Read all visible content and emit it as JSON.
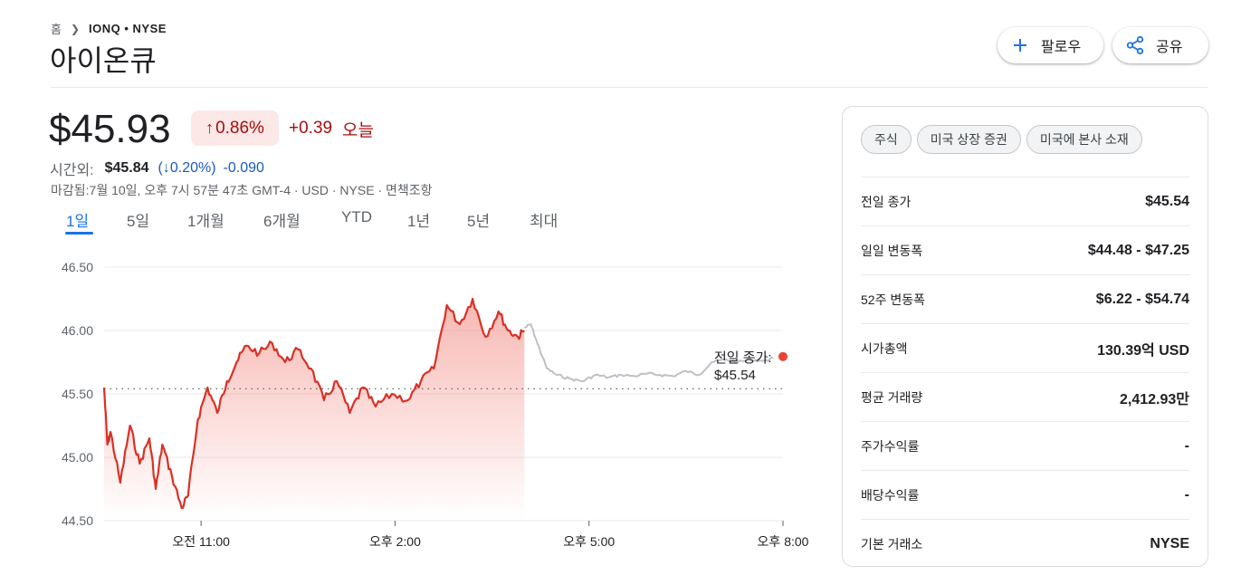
{
  "breadcrumb": {
    "home": "홈",
    "ticker": "IONQ • NYSE"
  },
  "title": "아이온큐",
  "actions": {
    "follow": "팔로우",
    "share": "공유"
  },
  "quote": {
    "price": "$45.93",
    "change_pct": "0.86%",
    "change_abs": "+0.39",
    "period": "오늘",
    "direction": "up"
  },
  "after_hours": {
    "label": "시간외:",
    "price": "$45.84",
    "change_pct": "(↓0.20%)",
    "change_abs": "-0.090"
  },
  "closed_note": "마감됨:7월 10일, 오후 7시 57분 47초 GMT-4 · USD · NYSE · 면책조항",
  "tabs": [
    "1일",
    "5일",
    "1개월",
    "6개월",
    "YTD",
    "1년",
    "5년",
    "최대"
  ],
  "active_tab": "1일",
  "colors": {
    "down_red": "#d93025",
    "up_text": "#a50e0e",
    "blue": "#1a73e8",
    "after_hours_gray": "#bdc1c6"
  },
  "icons": {
    "follow": "plus-icon",
    "share": "share-icon"
  },
  "chart_data": {
    "type": "line",
    "ylim": [
      44.5,
      46.5
    ],
    "y_ticks": [
      "46.50",
      "46.00",
      "45.50",
      "45.00",
      "44.50"
    ],
    "x_ticks": [
      "오전 11:00",
      "오후 2:00",
      "오후 5:00",
      "오후 8:00"
    ],
    "reference": {
      "label": "전일 종가:",
      "value": "$45.54",
      "y": 45.54
    },
    "series": [
      {
        "session": "regular",
        "time": [
          9.5,
          9.55,
          9.6,
          9.75,
          9.9,
          10.05,
          10.2,
          10.3,
          10.4,
          10.55,
          10.7,
          10.8,
          10.95,
          11.1,
          11.25,
          11.4,
          11.55,
          11.7,
          11.9,
          12.1,
          12.3,
          12.5,
          12.7,
          12.9,
          13.1,
          13.3,
          13.5,
          13.7,
          13.95,
          14.2,
          14.4,
          14.6,
          14.8,
          15.0,
          15.2,
          15.4,
          15.6,
          15.75,
          15.9,
          16.0
        ],
        "price": [
          45.55,
          45.1,
          45.2,
          44.8,
          45.25,
          44.95,
          45.15,
          44.75,
          45.1,
          44.85,
          44.6,
          44.7,
          45.3,
          45.55,
          45.35,
          45.6,
          45.75,
          45.88,
          45.82,
          45.9,
          45.75,
          45.85,
          45.7,
          45.45,
          45.6,
          45.35,
          45.55,
          45.4,
          45.5,
          45.45,
          45.6,
          45.7,
          46.2,
          46.05,
          46.25,
          45.95,
          46.15,
          46.0,
          45.95,
          46.0
        ]
      },
      {
        "session": "after_hours",
        "time": [
          16.0,
          16.1,
          16.2,
          16.35,
          16.5,
          16.7,
          16.9,
          17.1,
          17.3,
          17.5,
          17.7,
          17.9,
          18.1,
          18.3,
          18.5,
          18.7,
          18.9,
          19.1,
          19.3,
          19.5,
          19.7,
          19.85
        ],
        "price": [
          46.02,
          46.05,
          45.9,
          45.7,
          45.65,
          45.62,
          45.6,
          45.65,
          45.63,
          45.65,
          45.64,
          45.66,
          45.65,
          45.64,
          45.68,
          45.65,
          45.75,
          45.77,
          45.75,
          45.77,
          45.76,
          45.78
        ]
      }
    ]
  },
  "stats": {
    "chips": [
      "주식",
      "미국 상장 증권",
      "미국에 본사 소재"
    ],
    "rows": [
      {
        "label": "전일 종가",
        "value": "$45.54"
      },
      {
        "label": "일일 변동폭",
        "value": "$44.48 - $47.25"
      },
      {
        "label": "52주 변동폭",
        "value": "$6.22 - $54.74"
      },
      {
        "label": "시가총액",
        "value": "130.39억 USD"
      },
      {
        "label": "평균 거래량",
        "value": "2,412.93만"
      },
      {
        "label": "주가수익률",
        "value": "-"
      },
      {
        "label": "배당수익률",
        "value": "-"
      },
      {
        "label": "기본 거래소",
        "value": "NYSE"
      }
    ]
  }
}
